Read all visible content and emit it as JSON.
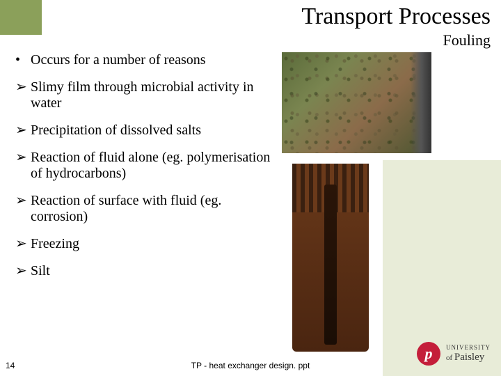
{
  "header": {
    "title": "Transport Processes",
    "subtitle": "Fouling"
  },
  "bullets": [
    {
      "symbol": "•",
      "text": "Occurs for a number of reasons"
    },
    {
      "symbol": "➢",
      "text": "Slimy film through microbial activity in water"
    },
    {
      "symbol": "➢",
      "text": "Precipitation of dissolved salts"
    },
    {
      "symbol": "➢",
      "text": "Reaction of fluid alone (eg. polymerisation of hydrocarbons)"
    },
    {
      "symbol": "➢",
      "text": "Reaction of surface with fluid (eg. corrosion)"
    },
    {
      "symbol": "➢",
      "text": "Freezing"
    },
    {
      "symbol": "➢",
      "text": "Silt"
    }
  ],
  "footer": {
    "slide_number": "14",
    "caption": "TP - heat exchanger design. ppt"
  },
  "logo": {
    "glyph": "p",
    "line1": "UNIVERSITY",
    "line2_prefix": "of",
    "line2_main": "Paisley"
  },
  "styling": {
    "accent_color": "#8ba05a",
    "side_band_color": "#e8ecd8",
    "title_fontsize": 34,
    "subtitle_fontsize": 22,
    "bullet_fontsize": 20,
    "logo_red": "#c41e3a",
    "background": "#ffffff",
    "image1_palette": [
      "#5a6b3a",
      "#7a8550",
      "#8b6b4a",
      "#4a5530"
    ],
    "image2_palette": [
      "#6b3a1a",
      "#5a2f15",
      "#4a2510",
      "#2a1508"
    ]
  }
}
